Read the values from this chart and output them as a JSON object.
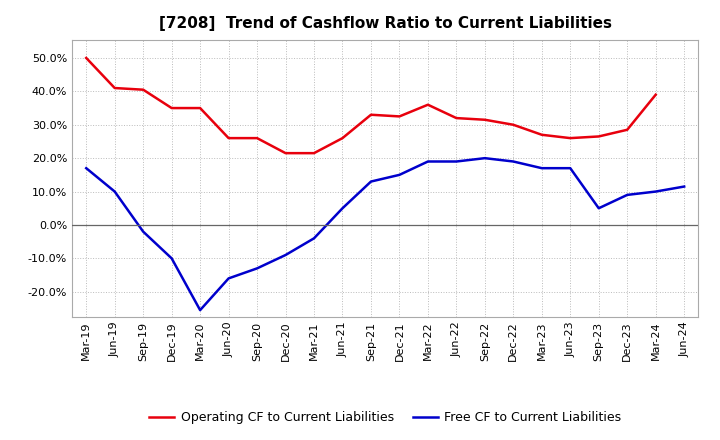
{
  "title": "[7208]  Trend of Cashflow Ratio to Current Liabilities",
  "x_labels": [
    "Mar-19",
    "Jun-19",
    "Sep-19",
    "Dec-19",
    "Mar-20",
    "Jun-20",
    "Sep-20",
    "Dec-20",
    "Mar-21",
    "Jun-21",
    "Sep-21",
    "Dec-21",
    "Mar-22",
    "Jun-22",
    "Sep-22",
    "Dec-22",
    "Mar-23",
    "Jun-23",
    "Sep-23",
    "Dec-23",
    "Mar-24",
    "Jun-24"
  ],
  "operating_cf": [
    0.5,
    0.41,
    0.405,
    0.35,
    0.35,
    0.26,
    0.26,
    0.215,
    0.215,
    0.26,
    0.33,
    0.325,
    0.36,
    0.32,
    0.315,
    0.3,
    0.27,
    0.26,
    0.265,
    0.285,
    0.39,
    null
  ],
  "free_cf": [
    0.17,
    0.1,
    -0.02,
    -0.1,
    -0.255,
    -0.16,
    -0.13,
    -0.09,
    -0.04,
    0.05,
    0.13,
    0.15,
    0.19,
    0.19,
    0.2,
    0.19,
    0.17,
    0.17,
    0.05,
    0.09,
    0.1,
    0.115
  ],
  "operating_color": "#e8000d",
  "free_color": "#0000cc",
  "ylim": [
    -0.275,
    0.555
  ],
  "yticks": [
    -0.2,
    -0.1,
    0.0,
    0.1,
    0.2,
    0.3,
    0.4,
    0.5
  ],
  "bg_color": "#ffffff",
  "plot_bg_color": "#ffffff",
  "grid_color": "#bbbbbb",
  "legend_op": "Operating CF to Current Liabilities",
  "legend_free": "Free CF to Current Liabilities",
  "title_fontsize": 11,
  "axis_fontsize": 8,
  "legend_fontsize": 9,
  "line_width": 1.8
}
